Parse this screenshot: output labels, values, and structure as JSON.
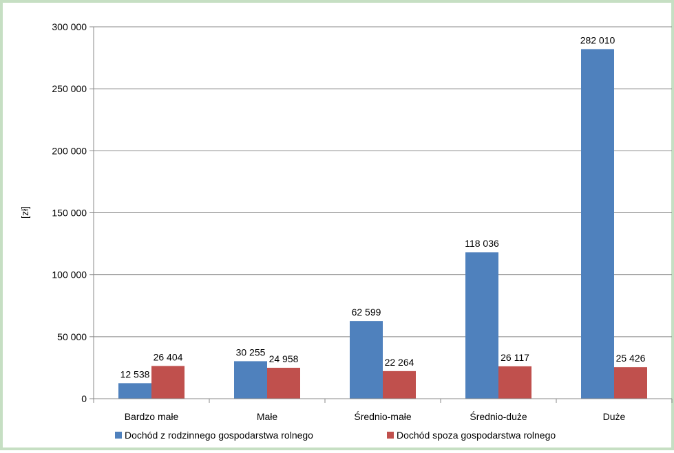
{
  "chart_data": {
    "type": "bar",
    "title": "",
    "xlabel": "",
    "ylabel": "[zł]",
    "ylim": [
      0,
      300000
    ],
    "yticks": [
      0,
      50000,
      100000,
      150000,
      200000,
      250000,
      300000
    ],
    "ytick_labels": [
      "0",
      "50 000",
      "100 000",
      "150 000",
      "200 000",
      "250 000",
      "300 000"
    ],
    "grid": true,
    "legend_position": "bottom",
    "categories": [
      "Bardzo małe",
      "Małe",
      "Średnio-małe",
      "Średnio-duże",
      "Duże"
    ],
    "series": [
      {
        "name": "Dochód z rodzinnego gospodarstwa rolnego",
        "color": "#4f81bd",
        "values": [
          12538,
          30255,
          62599,
          118036,
          282010
        ],
        "labels": [
          "12 538",
          "30 255",
          "62 599",
          "118 036",
          "282 010"
        ]
      },
      {
        "name": "Dochód spoza gospodarstwa rolnego",
        "color": "#c0504d",
        "values": [
          26404,
          24958,
          22264,
          26117,
          25426
        ],
        "labels": [
          "26 404",
          "24 958",
          "22 264",
          "26 117",
          "25 426"
        ]
      }
    ]
  }
}
